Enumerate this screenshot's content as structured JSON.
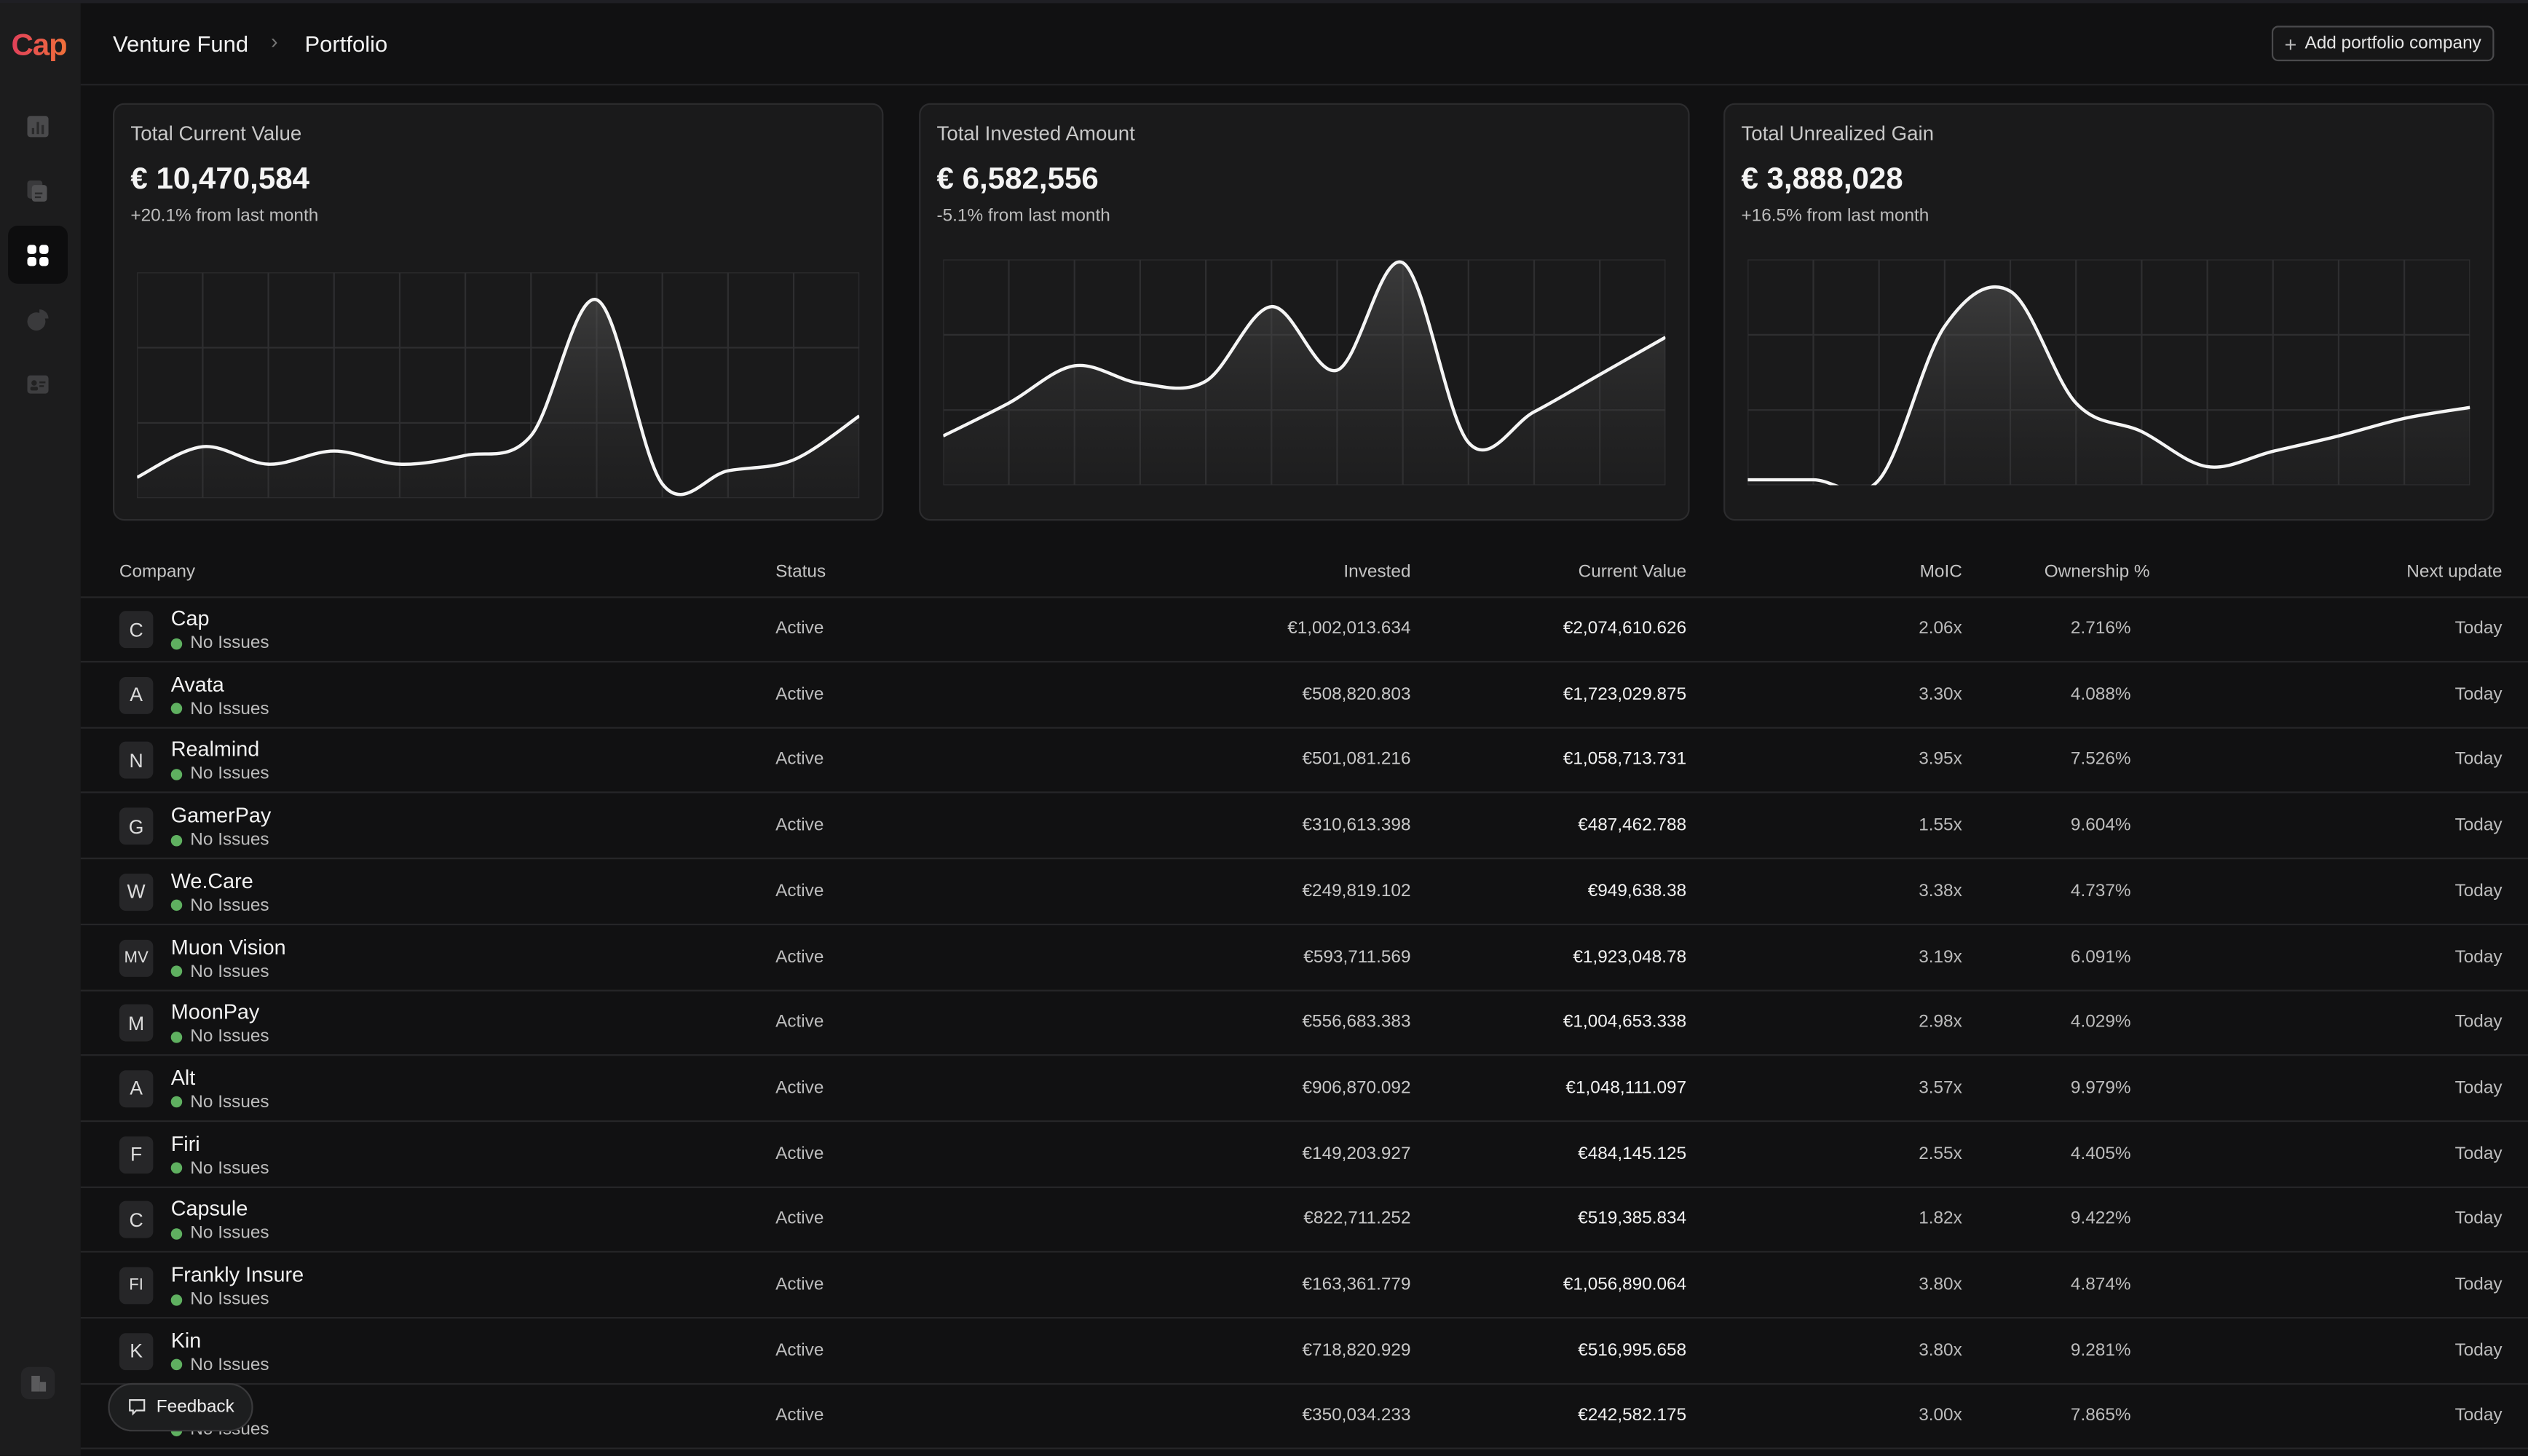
{
  "app": {
    "logo": "Cap"
  },
  "header": {
    "breadcrumb": [
      "Venture Fund",
      "Portfolio"
    ],
    "add_button": "Add portfolio company"
  },
  "sidebar": {
    "items": [
      {
        "icon": "bar-chart-icon"
      },
      {
        "icon": "documents-icon"
      },
      {
        "icon": "grid-icon",
        "active": true
      },
      {
        "icon": "pie-chart-icon"
      },
      {
        "icon": "contact-card-icon"
      }
    ],
    "bottom_icon": "building-icon"
  },
  "cards": [
    {
      "title": "Total Current Value",
      "value": "€ 10,470,584",
      "delta": "+20.1% from last month"
    },
    {
      "title": "Total Invested Amount",
      "value": "€ 6,582,556",
      "delta": "-5.1% from last month"
    },
    {
      "title": "Total Unrealized Gain",
      "value": "€ 3,888,028",
      "delta": "+16.5% from last month"
    }
  ],
  "chart_data": [
    {
      "type": "area",
      "title": "Total Current Value",
      "values": [
        8,
        22,
        14,
        20,
        14,
        18,
        27,
        89,
        5,
        11,
        16,
        36
      ],
      "ylim": [
        0,
        100
      ],
      "grid": true
    },
    {
      "type": "area",
      "title": "Total Invested Amount",
      "values": [
        21,
        36,
        53,
        45,
        46,
        80,
        51,
        100,
        18,
        32,
        49,
        66
      ],
      "ylim": [
        0,
        100
      ],
      "grid": true
    },
    {
      "type": "area",
      "title": "Total Unrealized Gain",
      "values": [
        1,
        1,
        1,
        71,
        87,
        36,
        23,
        7,
        14,
        21,
        29,
        34
      ],
      "ylim": [
        0,
        100
      ],
      "grid": true
    }
  ],
  "table": {
    "headers": {
      "company": "Company",
      "status": "Status",
      "invested": "Invested",
      "current": "Current Value",
      "moic": "MoIC",
      "ownership": "Ownership %",
      "next": "Next update"
    },
    "rows": [
      {
        "initials": "C",
        "name": "Cap",
        "issues": "No Issues",
        "status": "Active",
        "invested": "€1,002,013.634",
        "current": "€2,074,610.626",
        "moic": "2.06x",
        "ownership": "2.716%",
        "next": "Today"
      },
      {
        "initials": "A",
        "name": "Avata",
        "issues": "No Issues",
        "status": "Active",
        "invested": "€508,820.803",
        "current": "€1,723,029.875",
        "moic": "3.30x",
        "ownership": "4.088%",
        "next": "Today"
      },
      {
        "initials": "N",
        "name": "Realmind",
        "issues": "No Issues",
        "status": "Active",
        "invested": "€501,081.216",
        "current": "€1,058,713.731",
        "moic": "3.95x",
        "ownership": "7.526%",
        "next": "Today"
      },
      {
        "initials": "G",
        "name": "GamerPay",
        "issues": "No Issues",
        "status": "Active",
        "invested": "€310,613.398",
        "current": "€487,462.788",
        "moic": "1.55x",
        "ownership": "9.604%",
        "next": "Today"
      },
      {
        "initials": "W",
        "name": "We.Care",
        "issues": "No Issues",
        "status": "Active",
        "invested": "€249,819.102",
        "current": "€949,638.38",
        "moic": "3.38x",
        "ownership": "4.737%",
        "next": "Today"
      },
      {
        "initials": "MV",
        "name": "Muon Vision",
        "issues": "No Issues",
        "status": "Active",
        "invested": "€593,711.569",
        "current": "€1,923,048.78",
        "moic": "3.19x",
        "ownership": "6.091%",
        "next": "Today"
      },
      {
        "initials": "M",
        "name": "MoonPay",
        "issues": "No Issues",
        "status": "Active",
        "invested": "€556,683.383",
        "current": "€1,004,653.338",
        "moic": "2.98x",
        "ownership": "4.029%",
        "next": "Today"
      },
      {
        "initials": "A",
        "name": "Alt",
        "issues": "No Issues",
        "status": "Active",
        "invested": "€906,870.092",
        "current": "€1,048,111.097",
        "moic": "3.57x",
        "ownership": "9.979%",
        "next": "Today"
      },
      {
        "initials": "F",
        "name": "Firi",
        "issues": "No Issues",
        "status": "Active",
        "invested": "€149,203.927",
        "current": "€484,145.125",
        "moic": "2.55x",
        "ownership": "4.405%",
        "next": "Today"
      },
      {
        "initials": "C",
        "name": "Capsule",
        "issues": "No Issues",
        "status": "Active",
        "invested": "€822,711.252",
        "current": "€519,385.834",
        "moic": "1.82x",
        "ownership": "9.422%",
        "next": "Today"
      },
      {
        "initials": "FI",
        "name": "Frankly Insure",
        "issues": "No Issues",
        "status": "Active",
        "invested": "€163,361.779",
        "current": "€1,056,890.064",
        "moic": "3.80x",
        "ownership": "4.874%",
        "next": "Today"
      },
      {
        "initials": "K",
        "name": "Kin",
        "issues": "No Issues",
        "status": "Active",
        "invested": "€718,820.929",
        "current": "€516,995.658",
        "moic": "3.80x",
        "ownership": "9.281%",
        "next": "Today"
      },
      {
        "initials": "",
        "name": "",
        "issues": "No Issues",
        "status": "Active",
        "invested": "€350,034.233",
        "current": "€242,582.175",
        "moic": "3.00x",
        "ownership": "7.865%",
        "next": "Today"
      }
    ]
  },
  "feedback": {
    "label": "Feedback"
  }
}
